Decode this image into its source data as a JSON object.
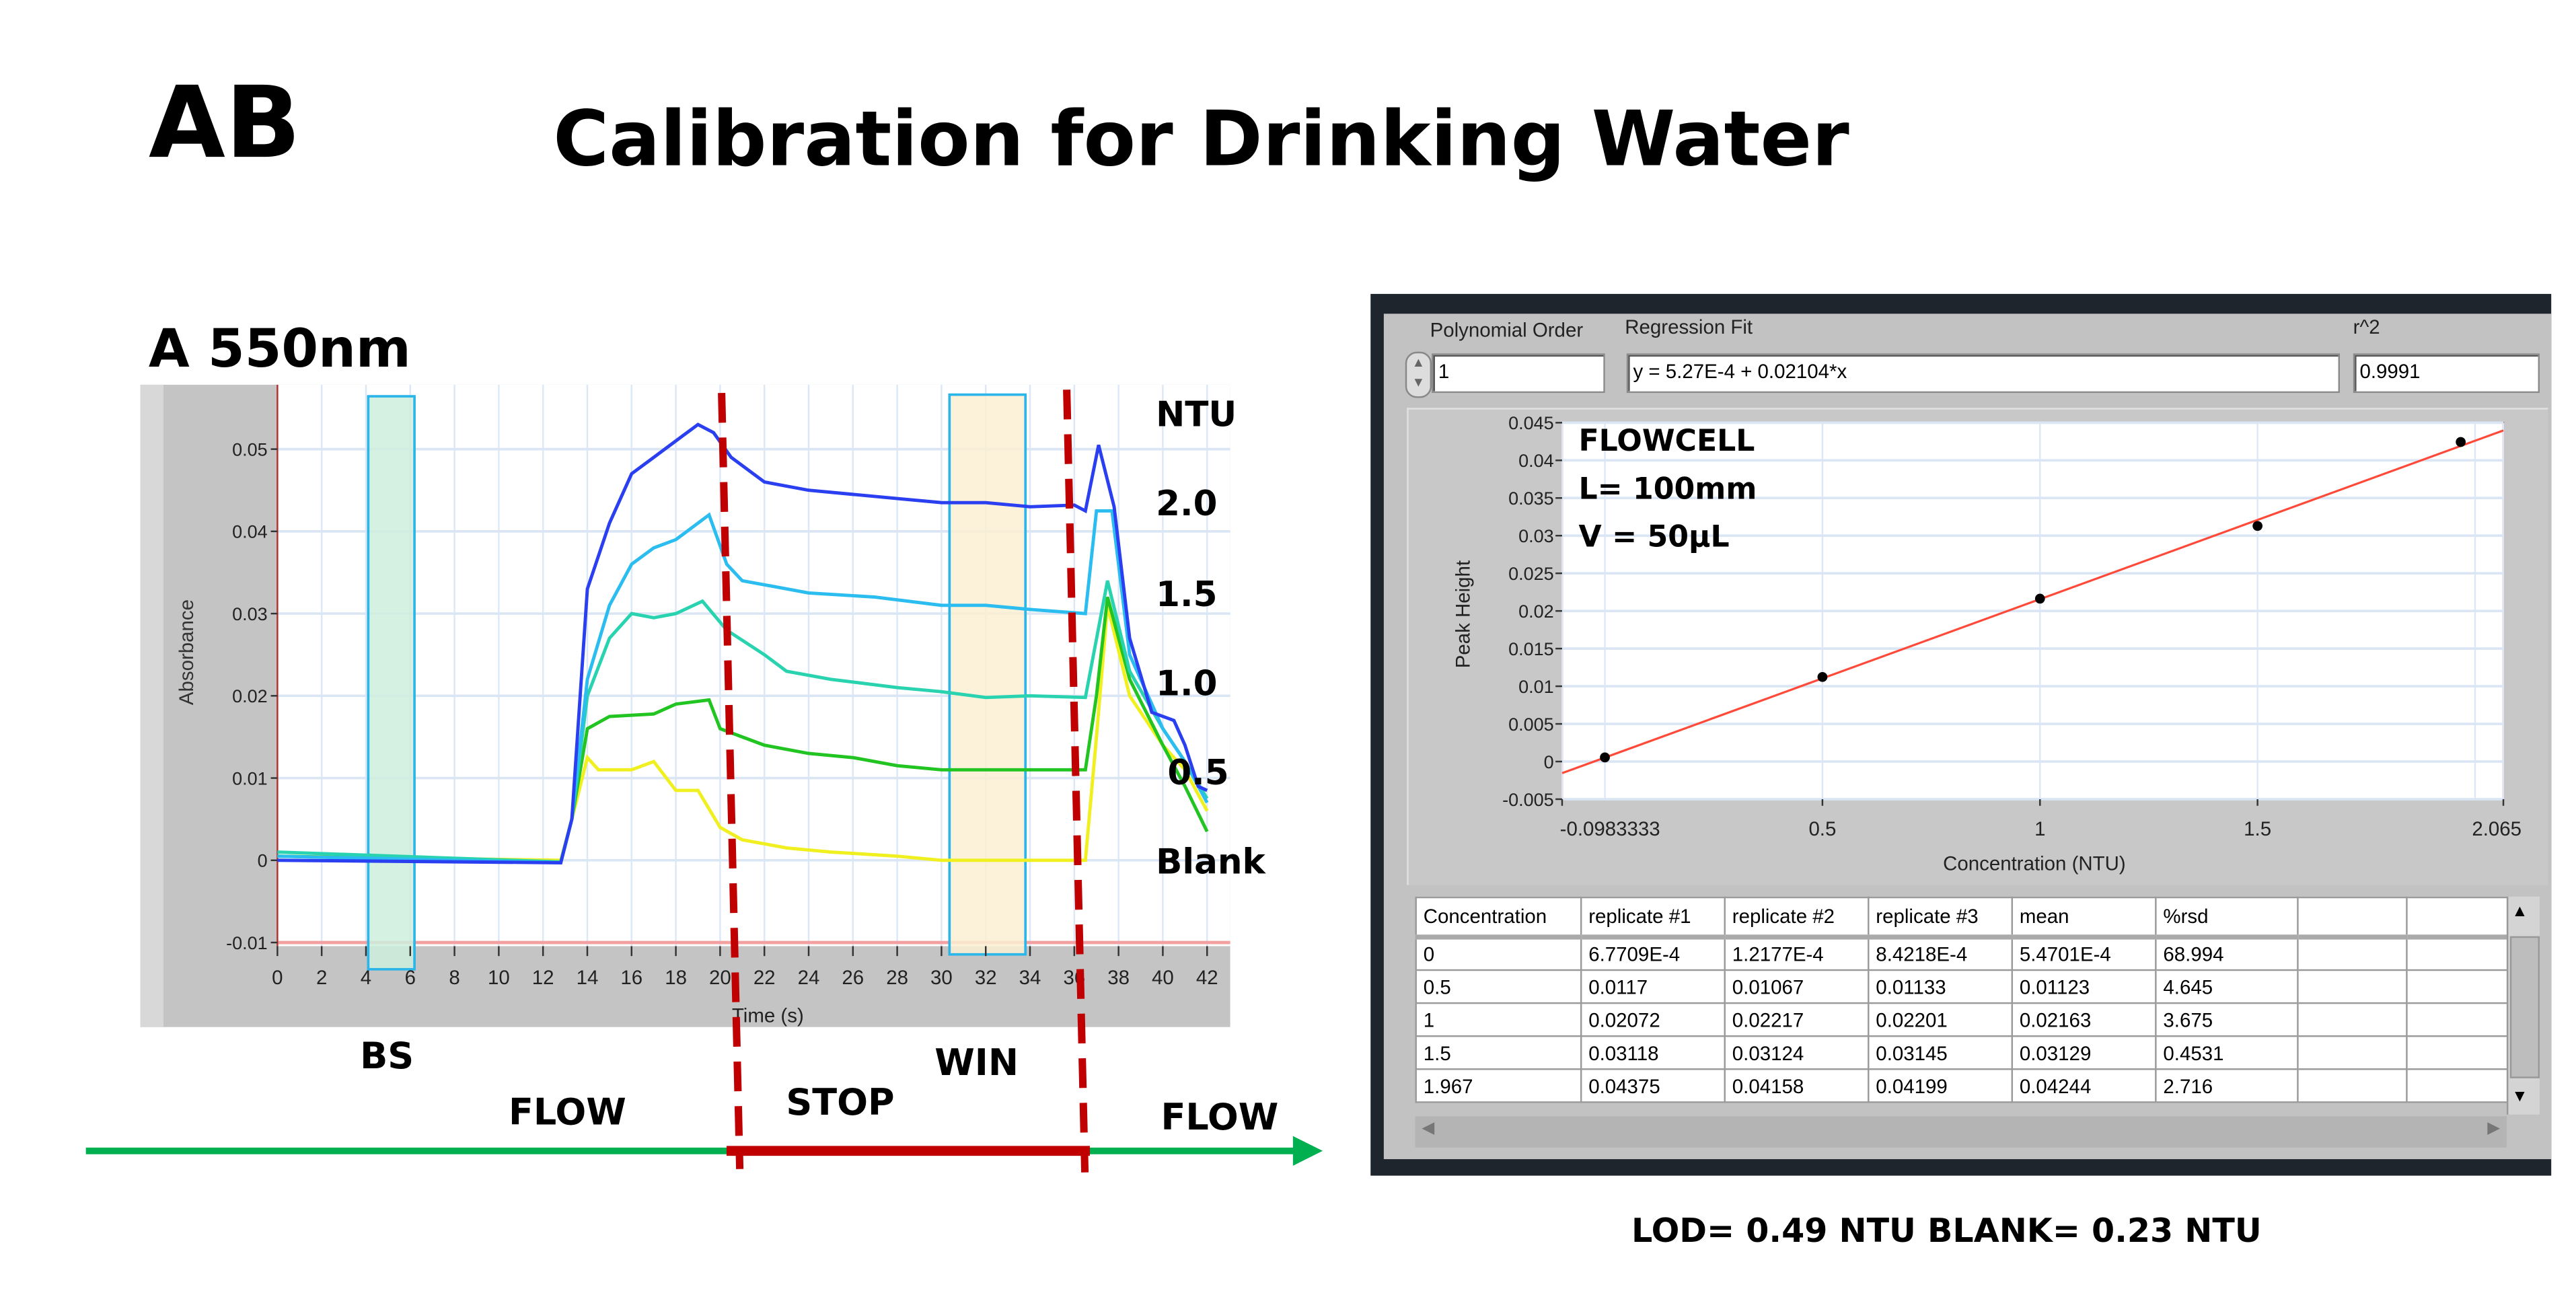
{
  "header": {
    "logo_text": "AB",
    "title": "Calibration  for Drinking Water"
  },
  "left_panel": {
    "wavelength_label": "A 550nm",
    "legend_title": "NTU",
    "phase_labels": {
      "bs": "BS",
      "flow_1": "FLOW",
      "stop": "STOP",
      "win": "WIN",
      "flow_2": "FLOW"
    }
  },
  "right_panel": {
    "polynomial_order_label": "Polynomial Order",
    "polynomial_order_value": "1",
    "regression_fit_label": "Regression Fit",
    "regression_fit_value": "y = 5.27E-4 + 0.02104*x",
    "r2_label": "r^2",
    "r2_value": "0.9991",
    "annotations": [
      "FLOWCELL",
      "L= 100mm",
      "V = 50µL"
    ]
  },
  "table": {
    "headers": [
      "Concentration",
      "replicate #1",
      "replicate #2",
      "replicate #3",
      "mean",
      "%rsd",
      "",
      ""
    ],
    "rows": [
      [
        "0",
        "6.7709E-4",
        "1.2177E-4",
        "8.4218E-4",
        "5.4701E-4",
        "68.994",
        "",
        ""
      ],
      [
        "0.5",
        "0.0117",
        "0.01067",
        "0.01133",
        "0.01123",
        "4.645",
        "",
        ""
      ],
      [
        "1",
        "0.02072",
        "0.02217",
        "0.02201",
        "0.02163",
        "3.675",
        "",
        ""
      ],
      [
        "1.5",
        "0.03118",
        "0.03124",
        "0.03145",
        "0.03129",
        "0.4531",
        "",
        ""
      ],
      [
        "1.967",
        "0.04375",
        "0.04158",
        "0.04199",
        "0.04244",
        "2.716",
        "",
        ""
      ]
    ]
  },
  "footer": {
    "lod_text": "LOD= 0.49 NTU BLANK= 0.23 NTU"
  },
  "colors": {
    "stop_line": "#c00000",
    "flow_line": "#00b050",
    "fit_line": "#ff4a3a",
    "bs_window": "#cdeedd",
    "win_window": "#fbefd2",
    "window_border": "#2bb5e8"
  },
  "chart_data": [
    {
      "type": "line",
      "title": "A 550nm",
      "xlabel": "Time (s)",
      "ylabel": "Absorbance",
      "xlim": [
        0,
        42
      ],
      "ylim": [
        -0.01,
        0.057
      ],
      "xticks": [
        "0",
        "2",
        "4",
        "6",
        "8",
        "10",
        "12",
        "14",
        "16",
        "18",
        "20",
        "22",
        "24",
        "26",
        "28",
        "30",
        "32",
        "34",
        "36",
        "38",
        "40",
        "42"
      ],
      "yticks": [
        "0.05",
        "0.04",
        "0.03",
        "0.02",
        "0.01",
        "0",
        "-0.01"
      ],
      "grid": true,
      "windows": [
        {
          "name": "BS",
          "range": [
            4.5,
            6.1
          ]
        },
        {
          "name": "WIN",
          "range": [
            30.5,
            33.8
          ]
        }
      ],
      "stop_markers": [
        20.5,
        36.3
      ],
      "series": [
        {
          "name": "2.0",
          "color": "#2a3ff0",
          "points": [
            [
              0,
              0
            ],
            [
              12.8,
              -0.0003
            ],
            [
              13.3,
              0.005
            ],
            [
              14,
              0.033
            ],
            [
              15,
              0.041
            ],
            [
              16,
              0.047
            ],
            [
              17,
              0.049
            ],
            [
              18,
              0.051
            ],
            [
              19,
              0.053
            ],
            [
              19.7,
              0.052
            ],
            [
              20.5,
              0.049
            ],
            [
              22,
              0.046
            ],
            [
              24,
              0.045
            ],
            [
              26,
              0.0445
            ],
            [
              28,
              0.044
            ],
            [
              30,
              0.0435
            ],
            [
              32,
              0.0435
            ],
            [
              34,
              0.043
            ],
            [
              36,
              0.0432
            ],
            [
              36.5,
              0.0425
            ],
            [
              37.1,
              0.0505
            ],
            [
              37.8,
              0.043
            ],
            [
              38.5,
              0.027
            ],
            [
              39.5,
              0.018
            ],
            [
              40.5,
              0.017
            ],
            [
              41,
              0.014
            ],
            [
              41.6,
              0.009
            ],
            [
              42,
              0.0085
            ]
          ]
        },
        {
          "name": "1.5",
          "color": "#2bbcf0",
          "points": [
            [
              0,
              0.0005
            ],
            [
              12.8,
              -0.0003
            ],
            [
              13.3,
              0.005
            ],
            [
              14,
              0.022
            ],
            [
              15,
              0.031
            ],
            [
              16,
              0.036
            ],
            [
              17,
              0.038
            ],
            [
              18,
              0.039
            ],
            [
              19.5,
              0.042
            ],
            [
              20.3,
              0.036
            ],
            [
              21,
              0.034
            ],
            [
              24,
              0.0325
            ],
            [
              27,
              0.032
            ],
            [
              30,
              0.031
            ],
            [
              32,
              0.031
            ],
            [
              34,
              0.0305
            ],
            [
              36.5,
              0.03
            ],
            [
              37,
              0.0425
            ],
            [
              37.7,
              0.0425
            ],
            [
              38.5,
              0.025
            ],
            [
              40,
              0.016
            ],
            [
              41,
              0.012
            ],
            [
              42,
              0.007
            ]
          ]
        },
        {
          "name": "1.0",
          "color": "#2ad3b0",
          "points": [
            [
              0,
              0.001
            ],
            [
              12.8,
              -0.0002
            ],
            [
              13.3,
              0.005
            ],
            [
              14,
              0.02
            ],
            [
              15,
              0.027
            ],
            [
              16,
              0.03
            ],
            [
              17,
              0.0295
            ],
            [
              18,
              0.03
            ],
            [
              19.2,
              0.0315
            ],
            [
              20.3,
              0.028
            ],
            [
              22,
              0.025
            ],
            [
              23,
              0.023
            ],
            [
              25,
              0.022
            ],
            [
              28,
              0.021
            ],
            [
              30,
              0.0205
            ],
            [
              32,
              0.0198
            ],
            [
              34,
              0.02
            ],
            [
              36.5,
              0.0198
            ],
            [
              37.5,
              0.034
            ],
            [
              38.5,
              0.023
            ],
            [
              40,
              0.016
            ],
            [
              41,
              0.012
            ],
            [
              42,
              0.0075
            ]
          ]
        },
        {
          "name": "0.5",
          "color": "#22c422",
          "points": [
            [
              0,
              0.0005
            ],
            [
              12.8,
              -0.0002
            ],
            [
              13.3,
              0.005
            ],
            [
              14,
              0.016
            ],
            [
              15,
              0.0175
            ],
            [
              17,
              0.0178
            ],
            [
              18,
              0.019
            ],
            [
              19.5,
              0.0195
            ],
            [
              20,
              0.016
            ],
            [
              22,
              0.014
            ],
            [
              24,
              0.013
            ],
            [
              26,
              0.0125
            ],
            [
              28,
              0.0115
            ],
            [
              30,
              0.011
            ],
            [
              32,
              0.011
            ],
            [
              34,
              0.011
            ],
            [
              36.5,
              0.011
            ],
            [
              37,
              0.02
            ],
            [
              37.5,
              0.032
            ],
            [
              38.5,
              0.022
            ],
            [
              40,
              0.014
            ],
            [
              41,
              0.009
            ],
            [
              42,
              0.0035
            ]
          ]
        },
        {
          "name": "Blank",
          "color": "#f0f020",
          "points": [
            [
              0,
              0.0005
            ],
            [
              12.8,
              0
            ],
            [
              13.3,
              0.005
            ],
            [
              14,
              0.0125
            ],
            [
              14.5,
              0.011
            ],
            [
              16,
              0.011
            ],
            [
              17,
              0.012
            ],
            [
              18,
              0.0085
            ],
            [
              19,
              0.0085
            ],
            [
              20,
              0.004
            ],
            [
              21,
              0.0025
            ],
            [
              23,
              0.0015
            ],
            [
              25,
              0.001
            ],
            [
              28,
              0.0005
            ],
            [
              30,
              0
            ],
            [
              32,
              0
            ],
            [
              34,
              0
            ],
            [
              36.5,
              0
            ],
            [
              37,
              0.015
            ],
            [
              37.5,
              0.031
            ],
            [
              38.5,
              0.02
            ],
            [
              40,
              0.014
            ],
            [
              41,
              0.011
            ],
            [
              42,
              0.006
            ]
          ]
        }
      ]
    },
    {
      "type": "scatter",
      "xlabel": "Concentration (NTU)",
      "ylabel": "Peak Height",
      "xlim": [
        -0.0983333,
        2.065
      ],
      "ylim": [
        -0.005,
        0.045
      ],
      "xticks": [
        "-0.0983333",
        "0.5",
        "1",
        "1.5",
        "2.065"
      ],
      "yticks": [
        "0.045",
        "0.04",
        "0.035",
        "0.03",
        "0.025",
        "0.02",
        "0.015",
        "0.01",
        "0.005",
        "0",
        "-0.005"
      ],
      "grid": true,
      "x": [
        0,
        0.5,
        1,
        1.5,
        1.967
      ],
      "y": [
        0.00054701,
        0.01123,
        0.02163,
        0.03129,
        0.04244
      ],
      "fit": {
        "intercept": 0.000527,
        "slope": 0.02104
      }
    }
  ]
}
